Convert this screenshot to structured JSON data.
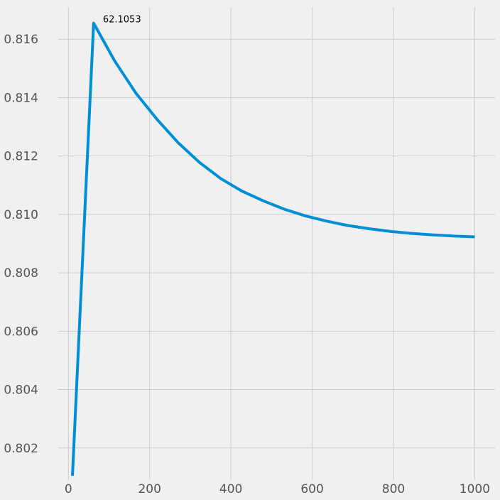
{
  "chart_data": {
    "type": "line",
    "title": "",
    "xlabel": "",
    "ylabel": "",
    "xlim": [
      -25,
      1050
    ],
    "ylim": [
      0.8009,
      0.8171
    ],
    "x_ticks": [
      0,
      200,
      400,
      600,
      800,
      1000
    ],
    "x_tick_labels": [
      "0",
      "200",
      "400",
      "600",
      "800",
      "1000"
    ],
    "y_ticks": [
      0.802,
      0.804,
      0.806,
      0.808,
      0.81,
      0.812,
      0.814,
      0.816
    ],
    "y_tick_labels": [
      "0.802",
      "0.804",
      "0.806",
      "0.808",
      "0.810",
      "0.812",
      "0.814",
      "0.816"
    ],
    "grid": true,
    "series": [
      {
        "color": "#008fd5",
        "x": [
          10,
          62.1053,
          114.2,
          166.3,
          218.4,
          270.5,
          322.6,
          374.7,
          426.8,
          478.9,
          531.1,
          583.2,
          635.3,
          687.4,
          739.5,
          791.6,
          843.7,
          895.8,
          947.9,
          1000
        ],
        "y": [
          0.80105,
          0.81655,
          0.81525,
          0.81415,
          0.81325,
          0.81245,
          0.81178,
          0.81123,
          0.8108,
          0.81047,
          0.81018,
          0.80995,
          0.80977,
          0.80962,
          0.80951,
          0.80942,
          0.80935,
          0.8093,
          0.80926,
          0.80923
        ]
      }
    ],
    "annotation": {
      "text": "62.1053",
      "x": 62.1053,
      "y": 0.81655
    }
  }
}
